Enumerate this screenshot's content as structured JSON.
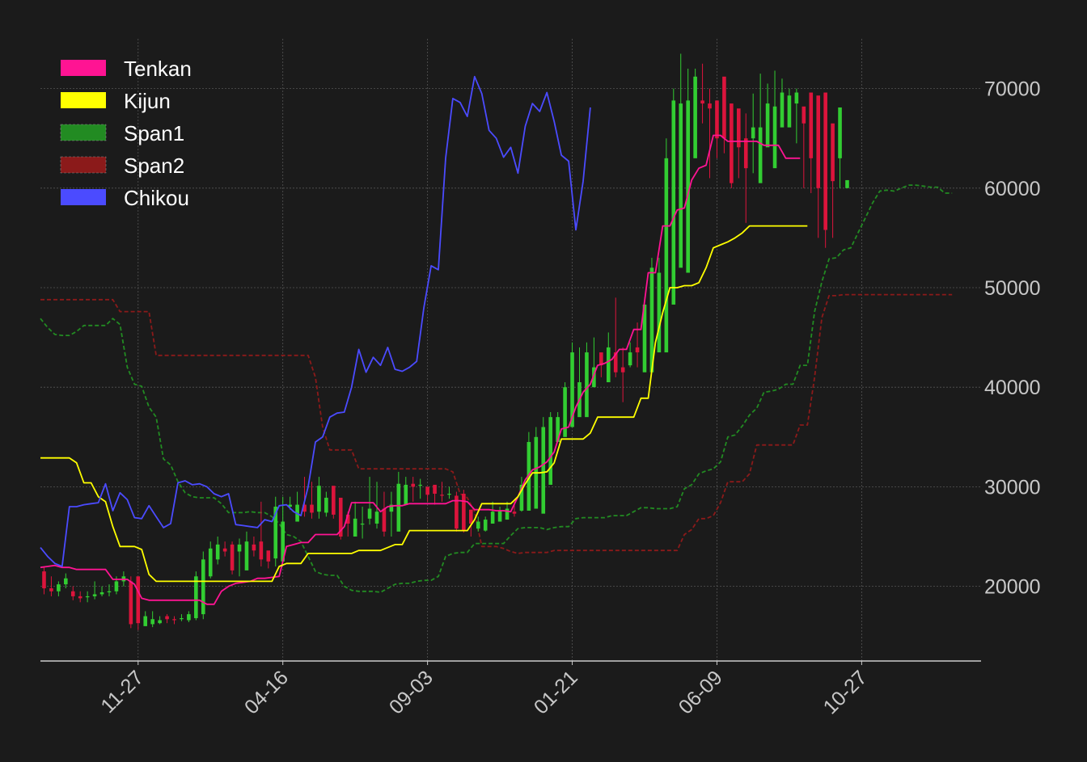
{
  "chart_data": {
    "type": "line",
    "x_ticks": [
      "11-27",
      "04-16",
      "09-03",
      "01-21",
      "06-09",
      "10-27"
    ],
    "y_ticks": [
      20000,
      30000,
      40000,
      50000,
      60000,
      70000
    ],
    "ylim": [
      12500,
      75000
    ],
    "xlim": [
      0,
      130
    ],
    "tick_positions": [
      13.5,
      33.5,
      53.5,
      73.5,
      93.5,
      113.5
    ],
    "grid": true,
    "legend_position": "top-left",
    "legend": [
      {
        "name": "Tenkan",
        "color": "#ff1493"
      },
      {
        "name": "Kijun",
        "color": "#ffff00"
      },
      {
        "name": "Span1",
        "color": "#228b22"
      },
      {
        "name": "Span2",
        "color": "#8b1a1a"
      },
      {
        "name": "Chikou",
        "color": "#4b4bff"
      }
    ],
    "candles": {
      "up_color": "#32cd32",
      "down_color": "#dc143c",
      "open": [
        21500,
        19800,
        19500,
        20200,
        19500,
        19000,
        19000,
        19000,
        19200,
        19400,
        19500,
        20500,
        20500,
        21000,
        16000,
        16200,
        16300,
        17000,
        16700,
        16700,
        16600,
        16800,
        17200,
        21000,
        22700,
        23800,
        24200,
        23500,
        21600,
        24200,
        24500,
        23600,
        22800,
        22500,
        28000,
        26500,
        28200,
        28200,
        27500,
        27400,
        30100,
        28900,
        27200,
        25000,
        26300,
        26800,
        26300,
        27800,
        27500,
        25500,
        28200,
        30300,
        30200,
        30000,
        30200,
        29200,
        29300,
        29100,
        29300,
        27700,
        25800,
        25600,
        26300,
        26500,
        26700,
        27500,
        27600,
        27600,
        27800,
        27300,
        30200,
        34500,
        35000,
        36000,
        37000,
        37000,
        40000,
        43500,
        40500,
        43500,
        42000,
        42200,
        44000,
        41500,
        41500,
        43500,
        43500,
        48300,
        52000,
        51500,
        63000,
        68800,
        68500,
        68800,
        71200,
        68500,
        68000,
        65000,
        65000,
        60500,
        64100,
        62000,
        66100,
        66100,
        68500,
        68200,
        69600,
        69300,
        69600,
        66500,
        63000,
        60000
      ],
      "close": [
        19800,
        19500,
        20200,
        20800,
        19000,
        18800,
        19000,
        19200,
        19400,
        19500,
        20500,
        21000,
        16200,
        16300,
        17000,
        16700,
        16600,
        16700,
        16600,
        16800,
        17200,
        21000,
        22700,
        23800,
        24200,
        23500,
        21600,
        24200,
        24500,
        23600,
        22700,
        22500,
        28000,
        26500,
        28200,
        28200,
        27500,
        27400,
        30100,
        28900,
        27200,
        25000,
        26300,
        26800,
        26300,
        27800,
        27500,
        25500,
        28200,
        30300,
        30200,
        30000,
        30200,
        29200,
        29300,
        29100,
        29300,
        25800,
        25600,
        26300,
        26500,
        26700,
        27500,
        27600,
        27800,
        27300,
        30200,
        34500,
        35000,
        36000,
        37000,
        37000,
        40000,
        43500,
        40500,
        43500,
        42000,
        42200,
        44000,
        41500,
        41500,
        43500,
        43500,
        48300,
        52000,
        51500,
        63000,
        68800,
        68500,
        68800,
        71200,
        68500,
        68000,
        65000,
        65000,
        60500,
        64100,
        62000,
        66100,
        66100,
        68500,
        68200,
        69600,
        69300,
        69600,
        66500,
        63000,
        60000,
        55800,
        60700,
        68100,
        60800
      ],
      "high": [
        22000,
        21000,
        20500,
        21300,
        20000,
        19500,
        19500,
        20500,
        20000,
        20200,
        21000,
        21500,
        21000,
        17000,
        17500,
        17500,
        17000,
        17200,
        17000,
        17200,
        17500,
        21500,
        23500,
        24500,
        25000,
        24500,
        24500,
        24800,
        25500,
        25000,
        28500,
        23500,
        29000,
        29000,
        29000,
        29500,
        31000,
        30500,
        31000,
        29500,
        28000,
        26800,
        27500,
        28500,
        28000,
        31000,
        30500,
        29500,
        29500,
        31500,
        31000,
        31000,
        30800,
        30000,
        30000,
        30500,
        30000,
        29500,
        29700,
        27700,
        27000,
        27000,
        28500,
        28000,
        28500,
        28500,
        31000,
        35500,
        36000,
        37000,
        37500,
        37500,
        40500,
        44500,
        44000,
        44500,
        45000,
        43000,
        45500,
        49000,
        44000,
        44500,
        46500,
        49000,
        53000,
        53000,
        65000,
        70000,
        73500,
        72000,
        72000,
        72500,
        70000,
        68000,
        69000,
        67500,
        67000,
        67500,
        69500,
        71500,
        70500,
        71800,
        71000,
        70000,
        70000,
        66700,
        63800,
        61200,
        60000,
        61200,
        68100,
        60800
      ],
      "low": [
        19200,
        19000,
        19000,
        19800,
        18600,
        18400,
        18400,
        18700,
        19000,
        19000,
        19200,
        20000,
        15800,
        15600,
        16000,
        15900,
        16200,
        16300,
        16200,
        16500,
        16400,
        16600,
        16700,
        20800,
        22200,
        23000,
        21200,
        21000,
        23200,
        23000,
        22000,
        21800,
        22000,
        26000,
        27700,
        26800,
        27000,
        26800,
        26800,
        27000,
        26800,
        24700,
        25000,
        25200,
        24800,
        26200,
        25800,
        25000,
        25000,
        27500,
        28500,
        28500,
        28800,
        28500,
        28200,
        28500,
        28800,
        25500,
        25400,
        25000,
        25500,
        25500,
        26300,
        26500,
        26700,
        27000,
        27500,
        30200,
        34000,
        35000,
        36500,
        36500,
        39000,
        40000,
        40000,
        41000,
        41000,
        41000,
        41500,
        41000,
        38500,
        42000,
        42000,
        43000,
        48000,
        50500,
        51000,
        62000,
        64000,
        66500,
        66500,
        66500,
        61000,
        63000,
        63500,
        60000,
        61000,
        56500,
        61500,
        63000,
        65000,
        65500,
        67000,
        66500,
        64500,
        60000,
        59500,
        55000,
        54000,
        55000,
        60000,
        60000
      ]
    },
    "series": [
      {
        "name": "Tenkan",
        "start": 0,
        "color": "#ff1493",
        "style": "solid",
        "values": [
          21900,
          22000,
          22100,
          21900,
          21900,
          21700,
          21700,
          21700,
          21700,
          21700,
          20700,
          20700,
          20700,
          20200,
          18800,
          18600,
          18600,
          18600,
          18600,
          18600,
          18600,
          18600,
          18600,
          18200,
          18200,
          19500,
          20000,
          20300,
          20400,
          20500,
          20800,
          20800,
          20900,
          21000,
          24000,
          24200,
          24400,
          24400,
          25200,
          25200,
          25200,
          25200,
          26000,
          28400,
          28400,
          28400,
          28400,
          27500,
          28000,
          28100,
          28100,
          28300,
          28300,
          28300,
          28300,
          28300,
          28300,
          28600,
          28600,
          28500,
          27700,
          27700,
          27700,
          27600,
          27600,
          27500,
          29000,
          30700,
          31700,
          32000,
          32500,
          33500,
          35800,
          36000,
          38000,
          39500,
          40300,
          42200,
          42400,
          42800,
          43800,
          43800,
          45800,
          45800,
          51500,
          51500,
          56200,
          56200,
          57800,
          58000,
          60800,
          62000,
          62300,
          65300,
          65300,
          64700,
          64700,
          64700,
          64700,
          64700,
          64300,
          64300,
          64300,
          63000,
          63000,
          63000
        ]
      },
      {
        "name": "Kijun",
        "start": 0,
        "color": "#ffff00",
        "style": "solid",
        "values": [
          32900,
          32900,
          32900,
          32900,
          32900,
          32400,
          30400,
          30400,
          29000,
          28500,
          26000,
          24000,
          24000,
          24000,
          23700,
          21200,
          20500,
          20500,
          20500,
          20500,
          20500,
          20500,
          20500,
          20500,
          20500,
          20500,
          20500,
          20500,
          20500,
          20500,
          20500,
          20500,
          20500,
          22000,
          22300,
          22300,
          22300,
          23300,
          23300,
          23300,
          23300,
          23300,
          23300,
          23300,
          23600,
          23600,
          23600,
          23600,
          23900,
          24200,
          24200,
          25600,
          25600,
          25600,
          25600,
          25600,
          25600,
          25600,
          25600,
          25600,
          26700,
          28300,
          28300,
          28300,
          28300,
          28300,
          29000,
          30300,
          31400,
          31400,
          31500,
          32400,
          34800,
          34800,
          34800,
          34800,
          35400,
          37000,
          37000,
          37000,
          37000,
          37000,
          37000,
          38900,
          38900,
          44500,
          47500,
          50000,
          50000,
          50200,
          50200,
          50500,
          52000,
          54000,
          54300,
          54600,
          55000,
          55500,
          56200,
          56200,
          56200,
          56200,
          56200,
          56200,
          56200,
          56200,
          56200
        ]
      },
      {
        "name": "Span1",
        "start": 0,
        "color": "#228b22",
        "style": "dashed",
        "values": [
          46900,
          46000,
          45300,
          45200,
          45200,
          45600,
          46200,
          46200,
          46200,
          46200,
          46900,
          46300,
          42000,
          40300,
          40100,
          38000,
          37000,
          32800,
          32200,
          30500,
          29400,
          29000,
          28900,
          28900,
          28900,
          28300,
          27400,
          27400,
          27400,
          27500,
          27400,
          27400,
          27000,
          26300,
          25200,
          25000,
          24500,
          23000,
          21500,
          21200,
          21100,
          21100,
          20000,
          19600,
          19500,
          19500,
          19500,
          19400,
          19800,
          20200,
          20300,
          20300,
          20500,
          20600,
          20600,
          21000,
          23000,
          23300,
          23400,
          23400,
          24300,
          24300,
          24300,
          24300,
          24300,
          25100,
          25800,
          25900,
          25900,
          25900,
          25700,
          25900,
          26000,
          26000,
          26800,
          26900,
          26900,
          26900,
          26900,
          27100,
          27100,
          27100,
          27500,
          27900,
          27900,
          27800,
          27800,
          27800,
          28000,
          29800,
          30200,
          31300,
          31600,
          31800,
          32500,
          35000,
          35200,
          36100,
          37200,
          37900,
          39500,
          39600,
          39800,
          40300,
          40300,
          42200,
          42200,
          47600,
          50600,
          52900,
          53000,
          53800,
          54000,
          55500,
          57000,
          58500,
          59700,
          59800,
          59700,
          60000,
          60300,
          60300,
          60200,
          60100,
          60100,
          59500,
          59500
        ]
      },
      {
        "name": "Span2",
        "start": 0,
        "color": "#8b1a1a",
        "style": "dashed",
        "values": [
          48800,
          48800,
          48800,
          48800,
          48800,
          48800,
          48800,
          48800,
          48800,
          48800,
          48800,
          47600,
          47600,
          47600,
          47600,
          47600,
          43200,
          43200,
          43200,
          43200,
          43200,
          43200,
          43200,
          43200,
          43200,
          43200,
          43200,
          43200,
          43200,
          43200,
          43200,
          43200,
          43200,
          43200,
          43200,
          43200,
          43200,
          43200,
          41000,
          36000,
          33700,
          33700,
          33700,
          33700,
          31800,
          31800,
          31800,
          31800,
          31800,
          31800,
          31800,
          31800,
          31800,
          31800,
          31800,
          31800,
          31800,
          31500,
          29300,
          28900,
          27500,
          24000,
          24000,
          24000,
          23800,
          23500,
          23300,
          23400,
          23400,
          23400,
          23400,
          23600,
          23600,
          23600,
          23600,
          23600,
          23600,
          23600,
          23600,
          23600,
          23600,
          23600,
          23600,
          23600,
          23600,
          23600,
          23600,
          23600,
          23600,
          25200,
          25700,
          26800,
          26800,
          27100,
          28400,
          30500,
          30500,
          30500,
          31300,
          34200,
          34200,
          34200,
          34200,
          34200,
          34200,
          36200,
          36200,
          41000,
          47000,
          49200,
          49200,
          49300,
          49300,
          49300,
          49300,
          49300,
          49300,
          49300,
          49300,
          49300,
          49300,
          49300,
          49300,
          49300,
          49300,
          49300,
          49300
        ]
      },
      {
        "name": "Chikou",
        "start": 0,
        "color": "#4b4bff",
        "style": "solid",
        "values": [
          23900,
          23000,
          22300,
          22000,
          28000,
          28000,
          28200,
          28300,
          28400,
          30300,
          27600,
          29400,
          28700,
          26900,
          26800,
          28100,
          27000,
          25900,
          26300,
          30400,
          30600,
          30200,
          30300,
          30000,
          29300,
          29000,
          29300,
          26200,
          26100,
          26000,
          25900,
          26700,
          26500,
          28100,
          28200,
          27500,
          27100,
          30000,
          34500,
          35000,
          37000,
          37400,
          37500,
          40000,
          43800,
          41500,
          43000,
          42200,
          44000,
          41800,
          41600,
          42000,
          42600,
          48000,
          52200,
          51800,
          63000,
          69000,
          68600,
          67200,
          71200,
          69500,
          65800,
          65000,
          63100,
          64100,
          61500,
          66200,
          68500,
          67700,
          69600,
          66700,
          63300,
          62700,
          55800,
          60700,
          68100
        ]
      }
    ]
  }
}
